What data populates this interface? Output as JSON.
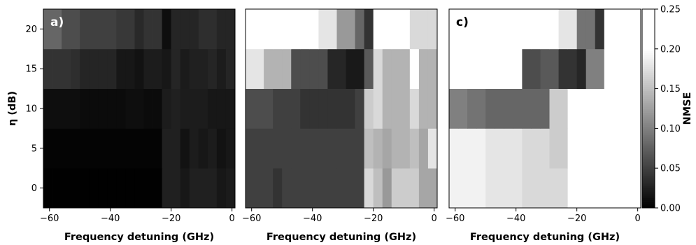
{
  "chart_data": {
    "type": "heatmap",
    "colormap": "gray",
    "vmin": 0.0,
    "vmax": 0.2,
    "over_color": "#ffffff",
    "x_edges": [
      -62,
      -59,
      -56,
      -53,
      -50,
      -47,
      -44,
      -41,
      -38,
      -35,
      -32,
      -29,
      -26,
      -23,
      -20,
      -17,
      -14,
      -11,
      -8,
      -5,
      -2,
      1
    ],
    "y_edges": [
      -2.5,
      2.5,
      7.5,
      12.5,
      17.5,
      22.5
    ],
    "xlim": [
      -62,
      1
    ],
    "ylim": [
      -2.5,
      22.5
    ],
    "xlabel": "Frequency detuning (GHz)",
    "ylabel": "η (dB)",
    "xticks": [
      -60,
      -40,
      -20,
      0
    ],
    "xtick_labels": [
      "−60",
      "−40",
      "−20",
      "0"
    ],
    "yticks": [
      0,
      5,
      10,
      15,
      20
    ],
    "ytick_labels": [
      "0",
      "5",
      "10",
      "15",
      "20"
    ],
    "colorbar": {
      "label": "NMSE",
      "ticks": [
        0.0,
        0.05,
        0.1,
        0.15,
        0.2,
        0.25
      ],
      "tick_labels": [
        "0.00",
        "0.05",
        "0.10",
        "0.15",
        "0.20",
        "0.25"
      ],
      "lim": [
        0.0,
        0.25
      ]
    },
    "panels": [
      {
        "letter": "a)",
        "letter_color": "#ffffff",
        "values": [
          [
            0.001,
            0.001,
            0.001,
            0.001,
            0.001,
            0.001,
            0.001,
            0.001,
            0.001,
            0.001,
            0.001,
            0.001,
            0.001,
            0.025,
            0.025,
            0.018,
            0.025,
            0.025,
            0.025,
            0.018,
            0.021
          ],
          [
            0.003,
            0.003,
            0.003,
            0.003,
            0.003,
            0.003,
            0.003,
            0.003,
            0.003,
            0.003,
            0.003,
            0.003,
            0.003,
            0.025,
            0.025,
            0.014,
            0.022,
            0.018,
            0.022,
            0.014,
            0.018
          ],
          [
            0.011,
            0.011,
            0.011,
            0.011,
            0.009,
            0.009,
            0.009,
            0.009,
            0.009,
            0.011,
            0.011,
            0.009,
            0.009,
            0.022,
            0.025,
            0.022,
            0.022,
            0.022,
            0.018,
            0.018,
            0.018
          ],
          [
            0.04,
            0.04,
            0.04,
            0.036,
            0.029,
            0.029,
            0.029,
            0.029,
            0.018,
            0.018,
            0.014,
            0.022,
            0.022,
            0.018,
            0.029,
            0.021,
            0.025,
            0.025,
            0.029,
            0.022,
            0.029
          ],
          [
            0.08,
            0.08,
            0.06,
            0.06,
            0.05,
            0.05,
            0.05,
            0.05,
            0.044,
            0.044,
            0.032,
            0.04,
            0.04,
            0.011,
            0.029,
            0.029,
            0.029,
            0.036,
            0.036,
            0.029,
            0.029
          ]
        ]
      },
      {
        "letter": "b)",
        "letter_color": "#ffffff",
        "values": [
          [
            0.05,
            0.05,
            0.05,
            0.04,
            0.05,
            0.05,
            0.05,
            0.05,
            0.05,
            0.05,
            0.05,
            0.05,
            0.05,
            0.17,
            0.15,
            0.12,
            0.16,
            0.16,
            0.16,
            0.13,
            0.13
          ],
          [
            0.05,
            0.05,
            0.05,
            0.05,
            0.05,
            0.05,
            0.05,
            0.05,
            0.05,
            0.05,
            0.05,
            0.05,
            0.05,
            0.15,
            0.14,
            0.13,
            0.14,
            0.14,
            0.15,
            0.13,
            0.18
          ],
          [
            0.06,
            0.06,
            0.06,
            0.05,
            0.05,
            0.05,
            0.04,
            0.04,
            0.04,
            0.04,
            0.04,
            0.04,
            0.05,
            0.16,
            0.17,
            0.14,
            0.14,
            0.14,
            0.17,
            0.14,
            0.14
          ],
          [
            0.18,
            0.18,
            0.14,
            0.14,
            0.14,
            0.06,
            0.06,
            0.06,
            0.06,
            0.03,
            0.03,
            0.02,
            0.02,
            0.07,
            0.17,
            0.14,
            0.14,
            0.14,
            0.2,
            0.14,
            0.14
          ],
          [
            0.4,
            0.4,
            0.4,
            0.4,
            0.4,
            0.4,
            0.4,
            0.4,
            0.18,
            0.18,
            0.12,
            0.12,
            0.08,
            0.04,
            0.21,
            0.2,
            0.2,
            0.21,
            0.17,
            0.17,
            0.17
          ]
        ]
      },
      {
        "letter": "c)",
        "letter_color": "#000000",
        "values": [
          [
            0.19,
            0.19,
            0.19,
            0.19,
            0.18,
            0.18,
            0.18,
            0.18,
            0.17,
            0.17,
            0.17,
            0.17,
            0.17,
            0.4,
            0.4,
            0.4,
            0.4,
            0.4,
            0.4,
            0.4,
            0.4
          ],
          [
            0.19,
            0.19,
            0.19,
            0.19,
            0.18,
            0.18,
            0.18,
            0.18,
            0.17,
            0.17,
            0.17,
            0.16,
            0.16,
            0.4,
            0.4,
            0.4,
            0.4,
            0.4,
            0.4,
            0.4,
            0.4
          ],
          [
            0.1,
            0.1,
            0.09,
            0.09,
            0.08,
            0.08,
            0.08,
            0.08,
            0.08,
            0.08,
            0.08,
            0.16,
            0.16,
            0.4,
            0.4,
            0.4,
            0.4,
            0.4,
            0.4,
            0.4,
            0.4
          ],
          [
            0.4,
            0.4,
            0.4,
            0.4,
            0.4,
            0.4,
            0.4,
            0.4,
            0.06,
            0.06,
            0.07,
            0.07,
            0.04,
            0.04,
            0.03,
            0.1,
            0.1,
            0.4,
            0.4,
            0.4,
            0.4
          ],
          [
            0.4,
            0.4,
            0.4,
            0.4,
            0.4,
            0.4,
            0.4,
            0.4,
            0.4,
            0.4,
            0.4,
            0.4,
            0.18,
            0.18,
            0.09,
            0.09,
            0.04,
            0.4,
            0.4,
            0.4,
            0.4
          ]
        ]
      }
    ]
  }
}
